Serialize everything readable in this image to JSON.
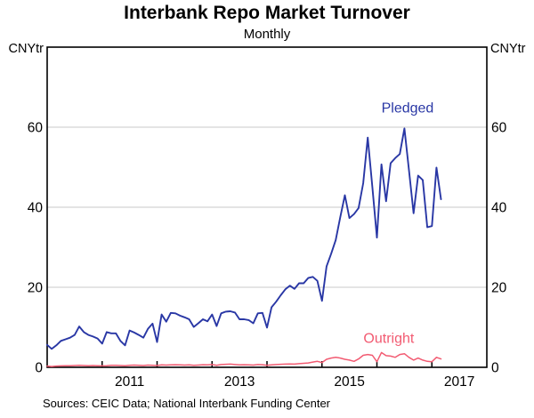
{
  "title": "Interbank Repo Market Turnover",
  "subtitle": "Monthly",
  "y_unit_left": "CNYtr",
  "y_unit_right": "CNYtr",
  "source": "Sources: CEIC Data; National Interbank Funding Center",
  "chart_data": {
    "type": "line",
    "title": "Interbank Repo Market Turnover",
    "subtitle": "Monthly",
    "ylabel": "CNYtr",
    "frequency": "monthly",
    "x_start": "2010-01",
    "x_axis_end": "2018-01",
    "data_end": "2017-03",
    "ylim": [
      0,
      80
    ],
    "y_ticks_labeled": [
      0,
      20,
      40,
      60
    ],
    "gridlines_y": [
      20,
      40,
      60
    ],
    "grid_color": "#c9c9c9",
    "x_year_ticks": [
      2011,
      2012,
      2013,
      2014,
      2015,
      2016,
      2017
    ],
    "x_year_labels": [
      "2011",
      "2013",
      "2015",
      "2017"
    ],
    "legend_position": "inline-annotations",
    "series": [
      {
        "name": "Pledged",
        "color": "#2937A5",
        "label_annotation": {
          "month_index": 78.7,
          "value": 64.9
        },
        "values": [
          5.6,
          4.6,
          5.5,
          6.6,
          7.0,
          7.4,
          8.1,
          10.2,
          8.8,
          8.1,
          7.7,
          7.2,
          5.9,
          8.8,
          8.5,
          8.5,
          6.6,
          5.5,
          9.2,
          8.7,
          8.1,
          7.4,
          9.6,
          10.9,
          6.3,
          13.2,
          11.4,
          13.6,
          13.5,
          12.9,
          12.5,
          12.0,
          10.1,
          11.0,
          12.0,
          11.5,
          13.2,
          10.3,
          13.5,
          13.9,
          14.0,
          13.7,
          12.0,
          12.0,
          11.8,
          11.0,
          13.5,
          13.6,
          9.9,
          15.0,
          16.4,
          18.0,
          19.5,
          20.4,
          19.6,
          21.0,
          21.0,
          22.3,
          22.6,
          21.6,
          16.6,
          25.2,
          28.3,
          31.8,
          37.5,
          43.0,
          37.3,
          38.3,
          39.8,
          46.0,
          57.4,
          45.0,
          32.4,
          50.7,
          41.5,
          51.0,
          52.3,
          53.3,
          59.7,
          49.3,
          38.5,
          47.9,
          46.8,
          35.0,
          35.3,
          49.9,
          42.0
        ]
      },
      {
        "name": "Outright",
        "color": "#F25B72",
        "label_annotation": {
          "month_index": 74.6,
          "value": 7.3
        },
        "values": [
          0.3,
          0.2,
          0.3,
          0.35,
          0.4,
          0.4,
          0.45,
          0.5,
          0.45,
          0.4,
          0.45,
          0.4,
          0.35,
          0.4,
          0.5,
          0.5,
          0.45,
          0.4,
          0.5,
          0.55,
          0.5,
          0.45,
          0.55,
          0.5,
          0.45,
          0.6,
          0.55,
          0.6,
          0.65,
          0.6,
          0.55,
          0.6,
          0.5,
          0.55,
          0.65,
          0.6,
          0.7,
          0.5,
          0.7,
          0.75,
          0.8,
          0.7,
          0.6,
          0.65,
          0.6,
          0.55,
          0.7,
          0.65,
          0.5,
          0.6,
          0.7,
          0.75,
          0.8,
          0.85,
          0.8,
          0.9,
          1.0,
          1.1,
          1.3,
          1.5,
          1.2,
          2.0,
          2.3,
          2.5,
          2.3,
          2.0,
          1.8,
          1.5,
          2.1,
          3.0,
          3.2,
          3.0,
          1.4,
          3.7,
          2.9,
          2.8,
          2.5,
          3.2,
          3.4,
          2.5,
          1.8,
          2.3,
          1.8,
          1.5,
          1.4,
          2.5,
          2.1
        ]
      }
    ]
  }
}
